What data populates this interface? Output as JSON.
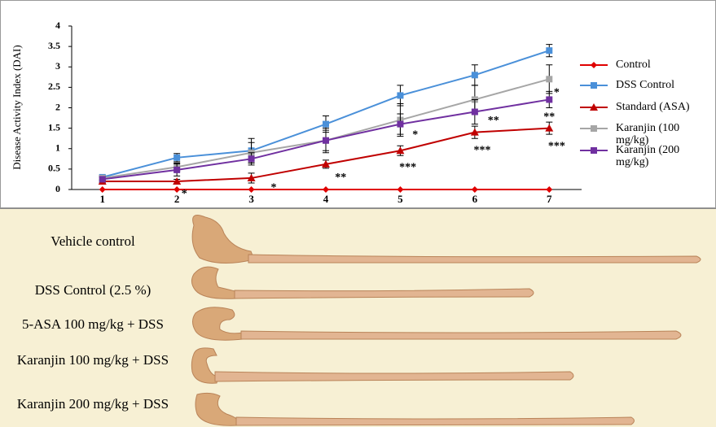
{
  "chart_data": {
    "type": "line",
    "y_label": "Disease Activity Index (DAI)",
    "categories": [
      "1",
      "2",
      "3",
      "4",
      "5",
      "6",
      "7"
    ],
    "ylim": [
      0,
      4
    ],
    "yticks": [
      0,
      0.5,
      1,
      1.5,
      2,
      2.5,
      3,
      3.5,
      4
    ],
    "series": [
      {
        "name": "Control",
        "color": "#e00000",
        "marker": "diamond",
        "values": [
          0,
          0,
          0,
          0,
          0,
          0,
          0
        ]
      },
      {
        "name": "DSS Control",
        "color": "#4a90d9",
        "marker": "square",
        "values": [
          0.3,
          0.78,
          0.95,
          1.6,
          2.3,
          2.8,
          3.4
        ],
        "errors": [
          0.05,
          0.1,
          0.3,
          0.2,
          0.25,
          0.25,
          0.15
        ]
      },
      {
        "name": "Standard (ASA)",
        "color": "#c00000",
        "marker": "triangle",
        "values": [
          0.2,
          0.2,
          0.28,
          0.62,
          0.95,
          1.4,
          1.5
        ],
        "errors": [
          0.03,
          0.05,
          0.12,
          0.1,
          0.12,
          0.15,
          0.15
        ]
      },
      {
        "name": "Karanjin (100 mg/kg)",
        "color": "#a6a6a6",
        "marker": "square",
        "values": [
          0.28,
          0.55,
          0.9,
          1.2,
          1.7,
          2.2,
          2.7
        ],
        "errors": [
          0.05,
          0.1,
          0.25,
          0.3,
          0.4,
          0.35,
          0.35
        ]
      },
      {
        "name": "Karanjin (200 mg/kg)",
        "color": "#7030a0",
        "marker": "square",
        "values": [
          0.25,
          0.48,
          0.75,
          1.2,
          1.6,
          1.9,
          2.2
        ],
        "errors": [
          0.05,
          0.15,
          0.15,
          0.25,
          0.25,
          0.3,
          0.2
        ]
      }
    ],
    "annotations": [
      {
        "text": "*",
        "x": 2.1,
        "y": 0
      },
      {
        "text": "*",
        "x": 3.3,
        "y": 0.15
      },
      {
        "text": "**",
        "x": 4.2,
        "y": 0.4
      },
      {
        "text": "***",
        "x": 5.1,
        "y": 0.65
      },
      {
        "text": "*",
        "x": 5.2,
        "y": 1.45
      },
      {
        "text": "***",
        "x": 6.1,
        "y": 1.07
      },
      {
        "text": "**",
        "x": 6.25,
        "y": 1.8
      },
      {
        "text": "***",
        "x": 7.1,
        "y": 1.17
      },
      {
        "text": "**",
        "x": 7.0,
        "y": 1.88
      },
      {
        "text": "*",
        "x": 7.1,
        "y": 2.48
      }
    ]
  },
  "photo_panel": {
    "labels": [
      "Vehicle control",
      "DSS Control (2.5 %)",
      "5-ASA 100 mg/kg + DSS",
      "Karanjin 100 mg/kg + DSS",
      "Karanjin 200 mg/kg + DSS"
    ]
  }
}
